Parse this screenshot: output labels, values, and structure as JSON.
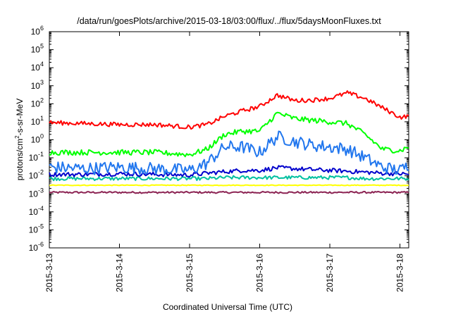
{
  "chart_data": {
    "type": "line",
    "title": "/data/run/goesPlots/archive/2015-03-18/03:00/flux/../flux/5daysMoonFluxes.txt",
    "xlabel": "Coordinated Universal Time (UTC)",
    "ylabel": "protons/cm²-s-sr-MeV",
    "ylabel_main": "protons/cm",
    "ylabel_sup": "2",
    "ylabel_rest": "-s-sr-MeV",
    "y_scale": "log",
    "ylim": [
      1e-06,
      1000000.0
    ],
    "y_ticks": [
      {
        "exp": "-6",
        "value": 1e-06
      },
      {
        "exp": "-5",
        "value": 1e-05
      },
      {
        "exp": "-4",
        "value": 0.0001
      },
      {
        "exp": "-3",
        "value": 0.001
      },
      {
        "exp": "-2",
        "value": 0.01
      },
      {
        "exp": "-1",
        "value": 0.1
      },
      {
        "exp": "0",
        "value": 1
      },
      {
        "exp": "1",
        "value": 10
      },
      {
        "exp": "2",
        "value": 100
      },
      {
        "exp": "3",
        "value": 1000
      },
      {
        "exp": "4",
        "value": 10000
      },
      {
        "exp": "5",
        "value": 100000
      },
      {
        "exp": "6",
        "value": 1000000
      }
    ],
    "y_tick_base": "10",
    "xlim": [
      "2015-03-13",
      "2015-03-18T03:00"
    ],
    "x_ticks": [
      {
        "label": "2015-3-13",
        "day": 0
      },
      {
        "label": "2015-3-14",
        "day": 1
      },
      {
        "label": "2015-3-15",
        "day": 2
      },
      {
        "label": "2015-3-16",
        "day": 3
      },
      {
        "label": "2015-3-17",
        "day": 4
      },
      {
        "label": "2015-3-18",
        "day": 5
      }
    ],
    "grid": false,
    "legend": "none",
    "series": [
      {
        "color": "#ff0000",
        "x": [
          "2015-03-13",
          "2015-03-13T12:00",
          "2015-03-14",
          "2015-03-14T12:00",
          "2015-03-15",
          "2015-03-15T06:00",
          "2015-03-15T12:00",
          "2015-03-15T18:00",
          "2015-03-16",
          "2015-03-16T06:00",
          "2015-03-16T12:00",
          "2015-03-16T18:00",
          "2015-03-17",
          "2015-03-17T06:00",
          "2015-03-17T12:00",
          "2015-03-17T18:00",
          "2015-03-18",
          "2015-03-18T03:00"
        ],
        "y": [
          9,
          8,
          7,
          7,
          5,
          7,
          20,
          40,
          70,
          300,
          150,
          160,
          200,
          400,
          200,
          60,
          18,
          20
        ]
      },
      {
        "color": "#00ff00",
        "x": [
          "2015-03-13",
          "2015-03-13T12:00",
          "2015-03-14",
          "2015-03-14T12:00",
          "2015-03-15",
          "2015-03-15T06:00",
          "2015-03-15T12:00",
          "2015-03-15T18:00",
          "2015-03-16",
          "2015-03-16T06:00",
          "2015-03-16T12:00",
          "2015-03-16T18:00",
          "2015-03-17",
          "2015-03-17T06:00",
          "2015-03-17T12:00",
          "2015-03-17T18:00",
          "2015-03-18",
          "2015-03-18T03:00"
        ],
        "y": [
          0.2,
          0.2,
          0.2,
          0.2,
          0.15,
          0.3,
          2,
          3,
          3,
          30,
          15,
          12,
          10,
          8,
          2,
          0.3,
          0.25,
          0.4
        ]
      },
      {
        "color": "#2277ee",
        "x": [
          "2015-03-13",
          "2015-03-13T12:00",
          "2015-03-14",
          "2015-03-14T12:00",
          "2015-03-15",
          "2015-03-15T06:00",
          "2015-03-15T12:00",
          "2015-03-15T18:00",
          "2015-03-16",
          "2015-03-16T06:00",
          "2015-03-16T12:00",
          "2015-03-16T18:00",
          "2015-03-17",
          "2015-03-17T06:00",
          "2015-03-17T12:00",
          "2015-03-17T18:00",
          "2015-03-18",
          "2015-03-18T03:00"
        ],
        "y": [
          0.03,
          0.025,
          0.03,
          0.025,
          0.02,
          0.05,
          0.4,
          0.4,
          0.2,
          1.5,
          0.8,
          0.5,
          0.4,
          0.3,
          0.1,
          0.03,
          0.02,
          0.04
        ]
      },
      {
        "color": "#0000cc",
        "x": [
          "2015-03-13",
          "2015-03-13T12:00",
          "2015-03-14",
          "2015-03-14T12:00",
          "2015-03-15",
          "2015-03-15T06:00",
          "2015-03-15T12:00",
          "2015-03-15T18:00",
          "2015-03-16",
          "2015-03-16T06:00",
          "2015-03-16T12:00",
          "2015-03-16T18:00",
          "2015-03-17",
          "2015-03-17T06:00",
          "2015-03-17T12:00",
          "2015-03-17T18:00",
          "2015-03-18",
          "2015-03-18T03:00"
        ],
        "y": [
          0.012,
          0.012,
          0.013,
          0.012,
          0.011,
          0.014,
          0.017,
          0.02,
          0.02,
          0.028,
          0.025,
          0.022,
          0.02,
          0.018,
          0.016,
          0.014,
          0.013,
          0.012
        ]
      },
      {
        "color": "#00c0a0",
        "x": [
          "2015-03-13",
          "2015-03-13T12:00",
          "2015-03-14",
          "2015-03-14T12:00",
          "2015-03-15",
          "2015-03-15T06:00",
          "2015-03-15T12:00",
          "2015-03-15T18:00",
          "2015-03-16",
          "2015-03-16T06:00",
          "2015-03-16T12:00",
          "2015-03-16T18:00",
          "2015-03-17",
          "2015-03-17T06:00",
          "2015-03-17T12:00",
          "2015-03-17T18:00",
          "2015-03-18",
          "2015-03-18T03:00"
        ],
        "y": [
          0.007,
          0.007,
          0.007,
          0.007,
          0.007,
          0.007,
          0.008,
          0.008,
          0.008,
          0.008,
          0.008,
          0.008,
          0.008,
          0.008,
          0.007,
          0.007,
          0.007,
          0.007
        ]
      },
      {
        "color": "#ffff00",
        "x": [
          "2015-03-13",
          "2015-03-13T12:00",
          "2015-03-14",
          "2015-03-14T12:00",
          "2015-03-15",
          "2015-03-15T06:00",
          "2015-03-15T12:00",
          "2015-03-15T18:00",
          "2015-03-16",
          "2015-03-16T06:00",
          "2015-03-16T12:00",
          "2015-03-16T18:00",
          "2015-03-17",
          "2015-03-17T06:00",
          "2015-03-17T12:00",
          "2015-03-17T18:00",
          "2015-03-18",
          "2015-03-18T03:00"
        ],
        "y": [
          0.003,
          0.003,
          0.003,
          0.003,
          0.003,
          0.003,
          0.003,
          0.003,
          0.003,
          0.003,
          0.003,
          0.003,
          0.003,
          0.003,
          0.003,
          0.003,
          0.003,
          0.003
        ]
      },
      {
        "color": "#8b2252",
        "x": [
          "2015-03-13",
          "2015-03-13T12:00",
          "2015-03-14",
          "2015-03-14T12:00",
          "2015-03-15",
          "2015-03-15T06:00",
          "2015-03-15T12:00",
          "2015-03-15T18:00",
          "2015-03-16",
          "2015-03-16T06:00",
          "2015-03-16T12:00",
          "2015-03-16T18:00",
          "2015-03-17",
          "2015-03-17T06:00",
          "2015-03-17T12:00",
          "2015-03-17T18:00",
          "2015-03-18",
          "2015-03-18T03:00"
        ],
        "y": [
          0.0012,
          0.0012,
          0.0012,
          0.0012,
          0.0012,
          0.0012,
          0.0012,
          0.0012,
          0.0012,
          0.0012,
          0.0012,
          0.0012,
          0.0012,
          0.0012,
          0.0012,
          0.0012,
          0.0012,
          0.0012
        ]
      }
    ]
  }
}
